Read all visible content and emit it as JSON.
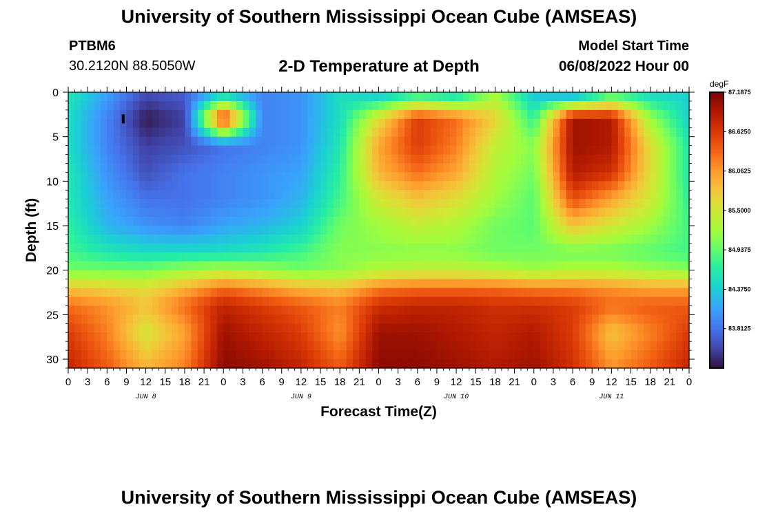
{
  "header": {
    "title": "University of Southern Mississippi Ocean Cube (AMSEAS)",
    "station": "PTBM6",
    "coords": "30.2120N  88.5050W",
    "plot_title": "2-D Temperature at Depth",
    "model_start_label": "Model Start Time",
    "model_start_value": "06/08/2022 Hour 00"
  },
  "footer": {
    "title": "University of Southern Mississippi Ocean Cube (AMSEAS)"
  },
  "chart_data": {
    "type": "heatmap",
    "title": "2-D Temperature at Depth",
    "xlabel": "Forecast Time(Z)",
    "ylabel": "Depth (ft)",
    "x_range_hours": [
      0,
      96
    ],
    "x_ticks": [
      "0",
      "3",
      "6",
      "9",
      "12",
      "15",
      "18",
      "21",
      "0",
      "3",
      "6",
      "9",
      "12",
      "15",
      "18",
      "21",
      "0",
      "3",
      "6",
      "9",
      "12",
      "15",
      "18",
      "21",
      "0",
      "3",
      "6",
      "9",
      "12",
      "15",
      "18",
      "21",
      "0"
    ],
    "date_labels": [
      {
        "label": "JUN 8",
        "hour": 12
      },
      {
        "label": "JUN 9",
        "hour": 36
      },
      {
        "label": "JUN 10",
        "hour": 60
      },
      {
        "label": "JUN 11",
        "hour": 84
      }
    ],
    "y_range_ft": [
      0,
      31
    ],
    "y_ticks": [
      0,
      5,
      10,
      15,
      20,
      25,
      30
    ],
    "colorbar": {
      "unit": "degF",
      "min": 83.25,
      "max": 87.1875,
      "tick_labels": [
        "87.1875",
        "86.6250",
        "86.0625",
        "85.5000",
        "84.9375",
        "84.3750",
        "83.8125"
      ],
      "colors": [
        "#30123b",
        "#4145ab",
        "#4675ed",
        "#39a2fc",
        "#1bcfd4",
        "#24eca6",
        "#61fc6c",
        "#a4fc3b",
        "#d1e834",
        "#f3c63a",
        "#fe9b2d",
        "#f36315",
        "#d93806",
        "#b11901",
        "#7a0402"
      ]
    },
    "grid": {
      "hours": [
        0,
        6,
        12,
        18,
        24,
        30,
        36,
        42,
        48,
        54,
        60,
        66,
        72,
        78,
        84,
        90,
        96
      ],
      "depths": [
        0,
        3,
        6,
        9,
        12,
        15,
        18,
        20,
        22,
        24,
        27,
        31
      ],
      "values": [
        [
          84.6,
          84.1,
          83.6,
          83.7,
          84.2,
          83.9,
          84.0,
          84.5,
          84.2,
          84.5,
          84.3,
          85.2,
          84.3,
          83.8,
          84.6,
          84.4,
          84.4
        ],
        [
          84.5,
          83.9,
          83.3,
          83.5,
          86.8,
          83.9,
          84.0,
          84.5,
          85.6,
          86.6,
          86.3,
          85.7,
          84.7,
          87.0,
          86.9,
          85.2,
          84.4
        ],
        [
          84.5,
          83.9,
          83.5,
          83.6,
          83.8,
          83.9,
          84.0,
          84.6,
          86.0,
          86.6,
          86.2,
          85.4,
          85.1,
          87.0,
          86.9,
          85.6,
          84.6
        ],
        [
          84.6,
          84.0,
          83.6,
          83.8,
          83.9,
          84.0,
          84.1,
          84.7,
          85.9,
          86.3,
          86.0,
          85.3,
          85.0,
          86.9,
          86.7,
          85.6,
          84.6
        ],
        [
          84.6,
          84.1,
          83.8,
          83.8,
          83.9,
          84.0,
          84.2,
          84.8,
          85.5,
          85.8,
          85.6,
          85.2,
          84.9,
          86.5,
          86.0,
          85.5,
          84.7
        ],
        [
          84.7,
          84.2,
          84.0,
          83.9,
          84.1,
          84.2,
          84.4,
          85.0,
          85.2,
          85.4,
          85.3,
          85.0,
          84.9,
          85.8,
          85.5,
          85.2,
          84.8
        ],
        [
          84.8,
          84.6,
          84.5,
          84.5,
          84.5,
          84.6,
          84.8,
          85.1,
          85.1,
          85.1,
          85.1,
          85.0,
          85.0,
          85.0,
          85.0,
          84.9,
          84.8
        ],
        [
          85.0,
          85.0,
          85.0,
          85.2,
          85.3,
          85.2,
          85.0,
          85.1,
          85.3,
          85.4,
          85.4,
          85.3,
          85.2,
          85.3,
          85.3,
          85.2,
          85.1
        ],
        [
          85.8,
          85.7,
          85.6,
          85.9,
          86.3,
          86.1,
          85.9,
          85.8,
          86.2,
          86.3,
          86.3,
          86.3,
          86.2,
          86.2,
          86.1,
          86.0,
          86.0
        ],
        [
          86.3,
          86.1,
          85.8,
          86.3,
          86.8,
          86.6,
          86.4,
          86.2,
          86.7,
          86.8,
          86.8,
          86.7,
          86.7,
          86.6,
          86.3,
          86.4,
          86.4
        ],
        [
          86.6,
          86.2,
          85.5,
          86.0,
          87.0,
          86.8,
          86.6,
          86.1,
          87.0,
          87.0,
          86.9,
          86.8,
          86.9,
          86.6,
          85.8,
          86.2,
          86.6
        ],
        [
          86.8,
          86.4,
          85.9,
          86.2,
          87.1,
          87.0,
          86.8,
          86.4,
          87.1,
          87.1,
          87.0,
          86.9,
          87.0,
          86.7,
          86.1,
          86.4,
          86.8
        ]
      ]
    }
  }
}
